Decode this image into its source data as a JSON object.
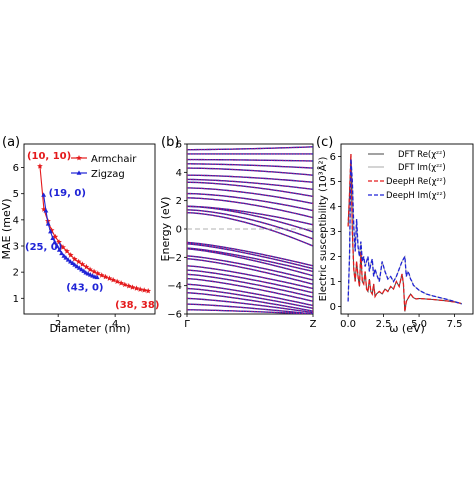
{
  "colors": {
    "armchair": "#e41a1c",
    "zigzag": "#1f23d6",
    "band_dft": "#2a2aa8",
    "band_deeph": "#c0117a",
    "dft_re": "#444444",
    "dft_im": "#aaaaaa",
    "deeph_re": "#e41a1c",
    "deeph_im": "#1f23d6"
  },
  "chart_data": [
    {
      "panel_label": "(a)",
      "type": "line",
      "xlabel": "Diameter (nm)",
      "ylabel": "MAE (meV)",
      "xlim": [
        0.8,
        5.4
      ],
      "ylim": [
        0.4,
        6.9
      ],
      "xticks": [
        "2",
        "4"
      ],
      "xtick_values": [
        2,
        4
      ],
      "yticks": [
        "1",
        "2",
        "3",
        "4",
        "5",
        "6"
      ],
      "ytick_values": [
        1,
        2,
        3,
        4,
        5,
        6
      ],
      "legend": [
        "Armchair",
        "Zigzag"
      ],
      "legend_position": "top-right",
      "series": [
        {
          "name": "Armchair",
          "marker": "star",
          "x": [
            1.36,
            1.5,
            1.64,
            1.77,
            1.9,
            2.03,
            2.17,
            2.31,
            2.44,
            2.58,
            2.72,
            2.85,
            2.99,
            3.12,
            3.26,
            3.39,
            3.53,
            3.66,
            3.8,
            3.93,
            4.07,
            4.21,
            4.34,
            4.48,
            4.61,
            4.75,
            4.88,
            5.02,
            5.16
          ],
          "y": [
            6.05,
            4.4,
            3.95,
            3.6,
            3.35,
            3.15,
            2.95,
            2.8,
            2.65,
            2.5,
            2.4,
            2.3,
            2.2,
            2.1,
            2.02,
            1.95,
            1.88,
            1.82,
            1.76,
            1.7,
            1.64,
            1.58,
            1.52,
            1.47,
            1.42,
            1.38,
            1.34,
            1.31,
            1.28
          ]
        },
        {
          "name": "Zigzag",
          "marker": "triangle",
          "x": [
            1.49,
            1.57,
            1.65,
            1.73,
            1.81,
            1.88,
            1.96,
            2.04,
            2.12,
            2.2,
            2.27,
            2.35,
            2.43,
            2.51,
            2.58,
            2.66,
            2.74,
            2.82,
            2.9,
            2.97,
            3.05,
            3.13,
            3.21,
            3.29,
            3.37
          ],
          "y": [
            4.95,
            4.35,
            3.85,
            3.55,
            3.3,
            3.15,
            3.0,
            2.85,
            2.72,
            2.62,
            2.55,
            2.47,
            2.4,
            2.34,
            2.28,
            2.22,
            2.16,
            2.1,
            2.04,
            1.98,
            1.94,
            1.9,
            1.86,
            1.82,
            1.8
          ]
        }
      ],
      "annotations": [
        {
          "text": "(10, 10)",
          "color": "red",
          "x": 1.36,
          "y": 6.05
        },
        {
          "text": "(19, 0)",
          "color": "blue",
          "x": 1.49,
          "y": 4.95
        },
        {
          "text": "(25, 0)",
          "color": "blue",
          "x": 1.96,
          "y": 3.0
        },
        {
          "text": "(43, 0)",
          "color": "blue",
          "x": 3.37,
          "y": 1.8
        },
        {
          "text": "(38, 38)",
          "color": "red",
          "x": 5.16,
          "y": 1.28
        }
      ]
    },
    {
      "panel_label": "(b)",
      "type": "line",
      "xlabel": "",
      "ylabel": "Energy (eV)",
      "xlim": [
        0,
        1
      ],
      "ylim": [
        -6,
        6
      ],
      "xticks": [
        "Γ",
        "Z"
      ],
      "xtick_values": [
        0,
        1
      ],
      "yticks": [
        "−6",
        "−4",
        "−2",
        "0",
        "2",
        "4",
        "6"
      ],
      "ytick_values": [
        -6,
        -4,
        -2,
        0,
        2,
        4,
        6
      ],
      "fermi_level": 0,
      "series": [
        {
          "name": "DFT",
          "style": "solid"
        },
        {
          "name": "DeepH",
          "style": "dotted"
        }
      ],
      "conduction_band_minima": [
        1.15,
        1.35,
        1.6,
        1.6,
        2.2,
        2.5,
        2.9,
        3.3,
        3.5,
        3.8,
        4.3,
        4.6,
        4.9,
        5.3,
        5.6
      ],
      "conduction_band_ends": [
        -1.2,
        -0.7,
        -0.2,
        0.3,
        0.8,
        1.3,
        1.8,
        2.3,
        2.8,
        3.3,
        3.8,
        4.3,
        4.8,
        5.3,
        5.8
      ],
      "valence_band_maxima": [
        -0.95,
        -1.05,
        -1.35,
        -1.4,
        -1.9,
        -2.1,
        -2.6,
        -2.9,
        -3.2,
        -3.5,
        -3.9,
        -4.2,
        -4.5,
        -4.9,
        -5.3,
        -5.7
      ],
      "valence_band_ends": [
        -2.6,
        -2.8,
        -3.0,
        -3.3,
        -3.6,
        -3.9,
        -4.2,
        -4.5,
        -4.8,
        -5.1,
        -5.4,
        -5.6,
        -5.8,
        -5.9,
        -6.0,
        -6.0
      ]
    },
    {
      "panel_label": "(c)",
      "type": "line",
      "xlabel": "ω (eV)",
      "ylabel": "Electric susceptibility (10³Å²)",
      "xlim": [
        -0.5,
        8.8
      ],
      "ylim": [
        -0.3,
        6.5
      ],
      "xticks": [
        "0.0",
        "2.5",
        "5.0",
        "7.5"
      ],
      "xtick_values": [
        0,
        2.5,
        5.0,
        7.5
      ],
      "yticks": [
        "0",
        "1",
        "2",
        "3",
        "4",
        "5",
        "6"
      ],
      "ytick_values": [
        0,
        1,
        2,
        3,
        4,
        5,
        6
      ],
      "legend": [
        "DFT Re(χᶻᶻ)",
        "DFT Im(χᶻᶻ)",
        "DeepH Re(χᶻᶻ)",
        "DeepH Im(χᶻᶻ)"
      ],
      "legend_position": "top-right",
      "series": [
        {
          "name": "Re(χᶻᶻ)",
          "x": [
            0.0,
            0.1,
            0.2,
            0.3,
            0.4,
            0.5,
            0.6,
            0.7,
            0.8,
            0.9,
            1.0,
            1.1,
            1.2,
            1.3,
            1.4,
            1.5,
            1.6,
            1.7,
            1.8,
            1.9,
            2.0,
            2.2,
            2.4,
            2.6,
            2.8,
            3.0,
            3.2,
            3.4,
            3.6,
            3.8,
            3.9,
            4.0,
            4.1,
            4.2,
            4.3,
            4.4,
            4.6,
            4.8,
            5.0,
            5.5,
            6.0,
            6.5,
            7.0,
            7.5,
            8.0
          ],
          "y": [
            3.2,
            4.5,
            6.1,
            3.0,
            1.5,
            1.0,
            1.8,
            1.2,
            0.8,
            2.2,
            1.0,
            0.9,
            1.4,
            0.7,
            0.6,
            1.1,
            0.6,
            0.5,
            0.9,
            0.4,
            0.5,
            0.6,
            0.5,
            0.7,
            0.6,
            0.8,
            0.7,
            1.0,
            0.8,
            1.3,
            0.9,
            -0.2,
            0.2,
            0.3,
            0.4,
            0.5,
            0.35,
            0.3,
            0.32,
            0.3,
            0.28,
            0.25,
            0.22,
            0.18,
            0.12
          ]
        },
        {
          "name": "Im(χᶻᶻ)",
          "x": [
            0.0,
            0.1,
            0.2,
            0.3,
            0.4,
            0.5,
            0.6,
            0.7,
            0.8,
            0.9,
            1.0,
            1.1,
            1.2,
            1.3,
            1.4,
            1.5,
            1.6,
            1.7,
            1.8,
            1.9,
            2.0,
            2.2,
            2.4,
            2.6,
            2.8,
            3.0,
            3.2,
            3.4,
            3.6,
            3.8,
            4.0,
            4.1,
            4.2,
            4.3,
            4.4,
            4.5,
            4.6,
            4.8,
            5.0,
            5.5,
            6.0,
            6.5,
            7.0,
            7.5,
            8.0
          ],
          "y": [
            0.2,
            2.0,
            5.9,
            5.0,
            3.2,
            2.2,
            3.5,
            2.4,
            2.0,
            2.6,
            1.8,
            2.0,
            1.6,
            1.8,
            2.0,
            1.4,
            1.7,
            1.9,
            1.2,
            1.5,
            1.3,
            1.0,
            1.8,
            1.4,
            1.1,
            1.2,
            1.0,
            1.2,
            1.5,
            1.8,
            2.0,
            1.2,
            1.4,
            1.3,
            1.1,
            1.0,
            0.85,
            0.75,
            0.65,
            0.5,
            0.42,
            0.35,
            0.28,
            0.2,
            0.1
          ]
        }
      ]
    }
  ]
}
